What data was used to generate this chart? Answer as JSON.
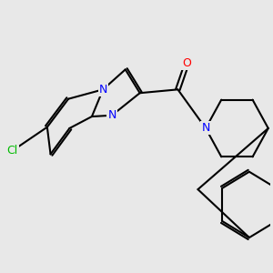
{
  "background_color": "#e8e8e8",
  "atom_color_N": "#0000ff",
  "atom_color_O": "#ff0000",
  "atom_color_Cl": "#00bb00",
  "atom_color_C": "#000000",
  "bond_color": "#000000",
  "bond_width": 1.5,
  "figsize": [
    3.0,
    3.0
  ],
  "dpi": 100,
  "xlim": [
    0,
    9
  ],
  "ylim": [
    1,
    8.5
  ]
}
